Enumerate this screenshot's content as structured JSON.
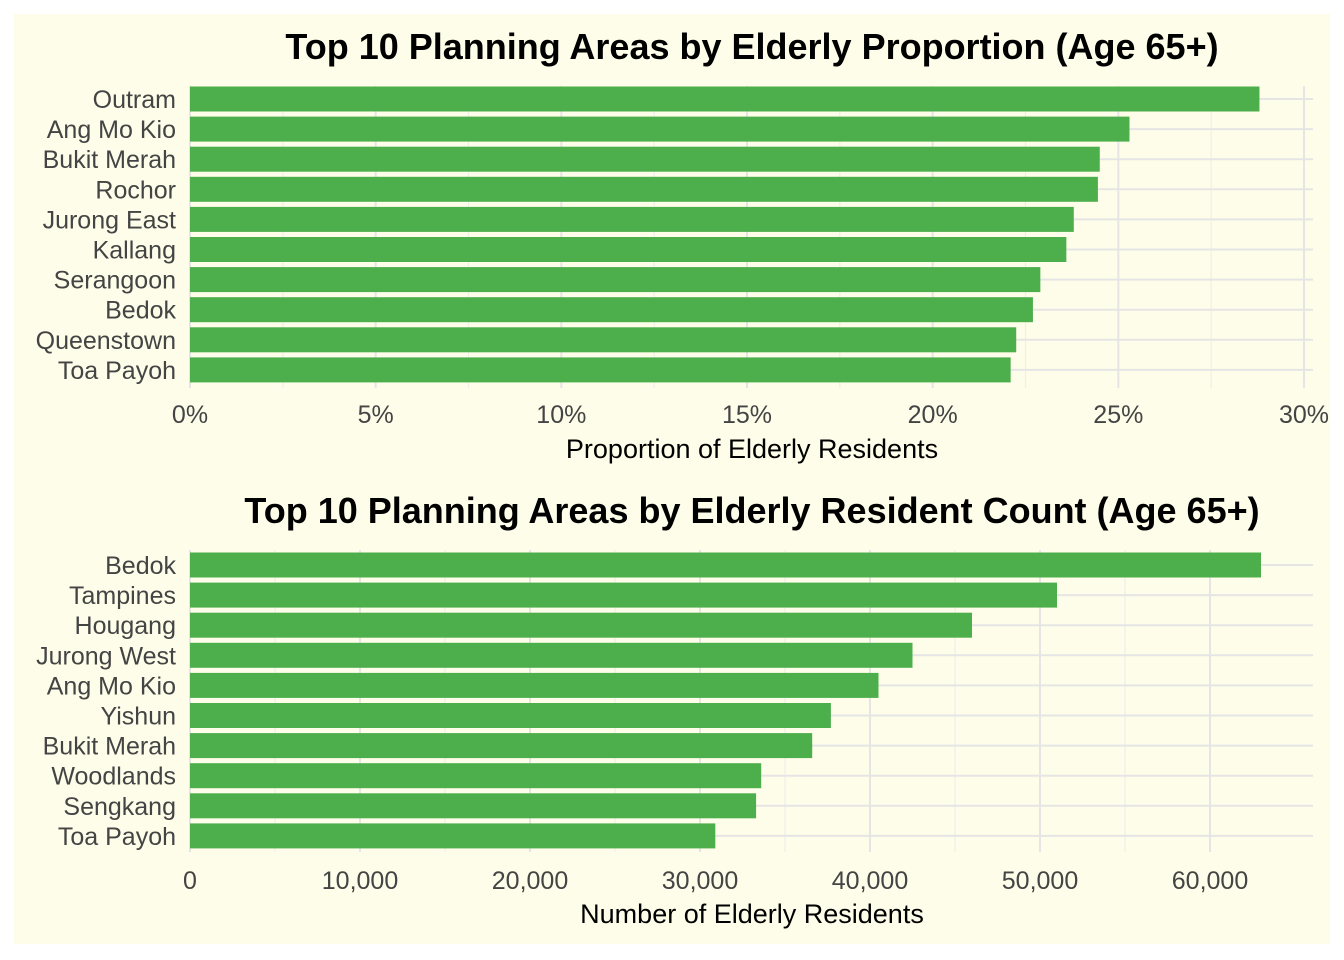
{
  "colors": {
    "background": "#fefde9",
    "bar": "#4caf4c",
    "grid": "#e6e5e6"
  },
  "chart_data": [
    {
      "type": "bar",
      "orientation": "horizontal",
      "title": "Top 10 Planning Areas by Elderly Proportion (Age 65+)",
      "xlabel": "Proportion of Elderly Residents",
      "ylabel": "",
      "categories": [
        "Outram",
        "Ang Mo Kio",
        "Bukit Merah",
        "Rochor",
        "Jurong East",
        "Kallang",
        "Serangoon",
        "Bedok",
        "Queenstown",
        "Toa Payoh"
      ],
      "values": [
        0.288,
        0.253,
        0.245,
        0.2445,
        0.238,
        0.236,
        0.229,
        0.227,
        0.2225,
        0.221
      ],
      "xlim": [
        0,
        0.3
      ],
      "ticks": [
        0,
        0.05,
        0.1,
        0.15,
        0.2,
        0.25,
        0.3
      ],
      "tick_labels": [
        "0%",
        "5%",
        "10%",
        "15%",
        "20%",
        "25%",
        "30%"
      ],
      "grid": true,
      "legend": "none"
    },
    {
      "type": "bar",
      "orientation": "horizontal",
      "title": "Top 10 Planning Areas by Elderly Resident Count (Age 65+)",
      "xlabel": "Number of Elderly Residents",
      "ylabel": "",
      "categories": [
        "Bedok",
        "Tampines",
        "Hougang",
        "Jurong West",
        "Ang Mo Kio",
        "Yishun",
        "Bukit Merah",
        "Woodlands",
        "Sengkang",
        "Toa Payoh"
      ],
      "values": [
        63000,
        51000,
        46000,
        42500,
        40500,
        37700,
        36600,
        33600,
        33300,
        30900
      ],
      "xlim": [
        0,
        66000
      ],
      "ticks": [
        0,
        10000,
        20000,
        30000,
        40000,
        50000,
        60000
      ],
      "tick_labels": [
        "0",
        "10,000",
        "20,000",
        "30,000",
        "40,000",
        "50,000",
        "60,000"
      ],
      "grid": true,
      "legend": "none"
    }
  ]
}
